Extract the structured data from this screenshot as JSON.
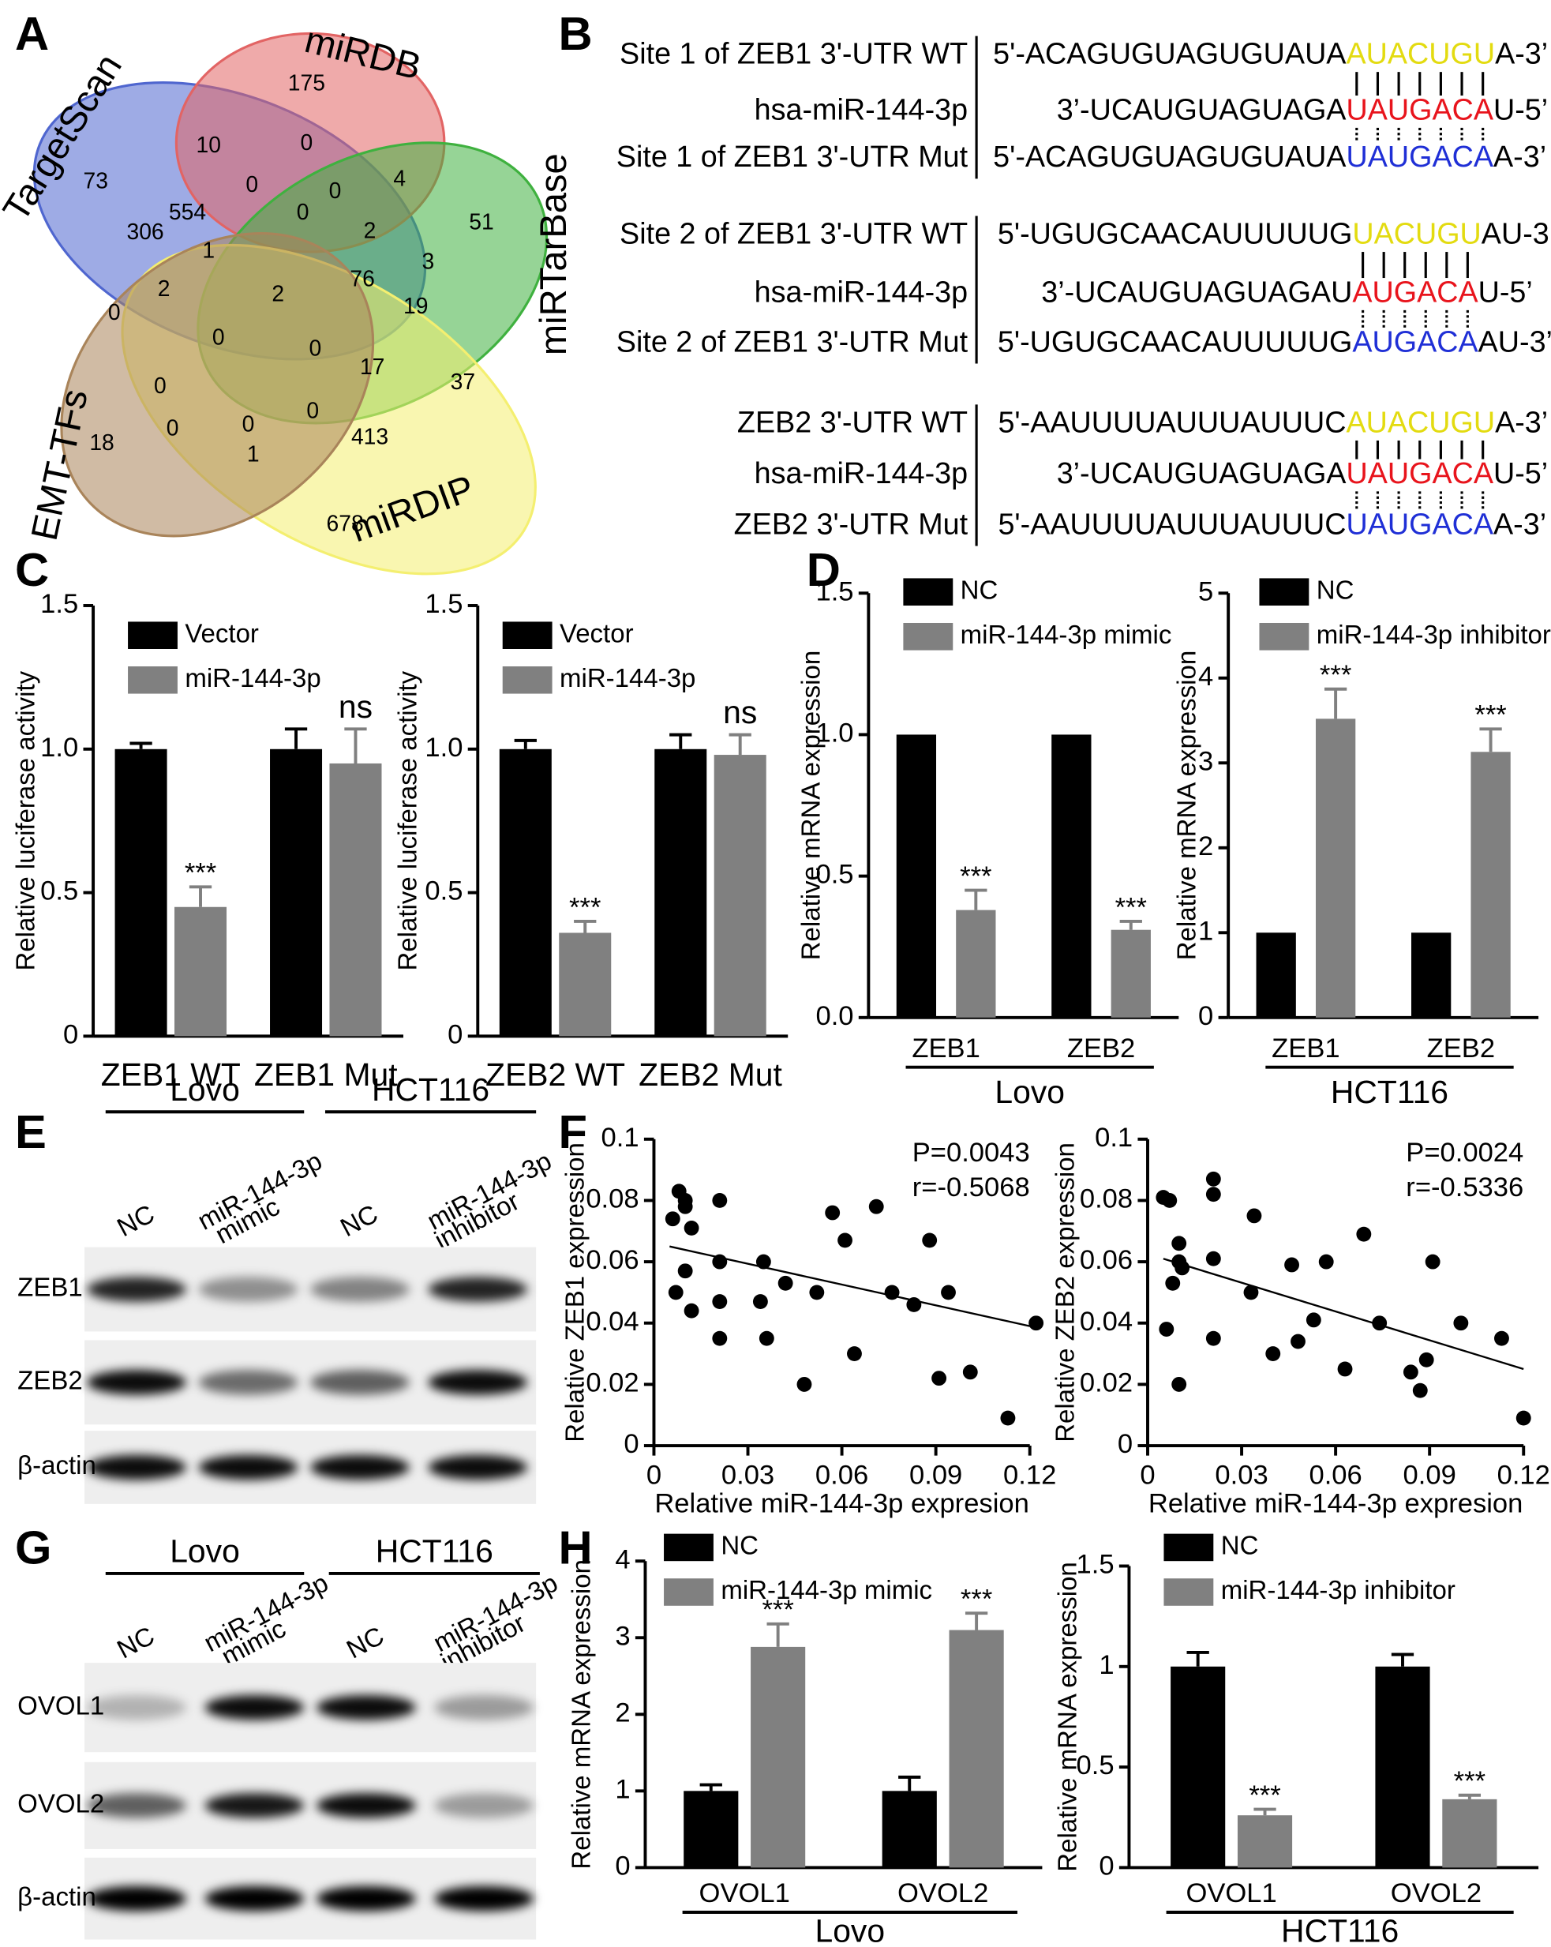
{
  "panel_labels": [
    "A",
    "B",
    "C",
    "D",
    "E",
    "F",
    "G",
    "H"
  ],
  "venn": {
    "sets": [
      {
        "name": "TargetScan",
        "color": "#4f66cf"
      },
      {
        "name": "miRDB",
        "color": "#e26464"
      },
      {
        "name": "miRTarBase",
        "color": "#3fb13f"
      },
      {
        "name": "miRDIP",
        "color": "#f4ef70"
      },
      {
        "name": "EMT-TFs",
        "color": "#a9845a"
      }
    ],
    "counts": [
      175,
      10,
      0,
      73,
      0,
      0,
      4,
      51,
      306,
      554,
      0,
      2,
      3,
      1,
      2,
      2,
      76,
      19,
      0,
      0,
      0,
      17,
      37,
      0,
      0,
      0,
      18,
      0,
      413,
      1,
      678
    ]
  },
  "sequences": [
    {
      "rows": [
        {
          "label": "Site 1 of ZEB1 3'-UTR WT",
          "segments": [
            "5'-ACAGUGUAGUGUAUA",
            "AUACUGU",
            "A-3’"
          ],
          "seed_color": "#e3db10"
        },
        {
          "label": "hsa-miR-144-3p",
          "segments": [
            "3’-UCAUGUAGUAGA",
            "UAUGACA",
            "U-5’"
          ],
          "seed_color": "#e8141c"
        },
        {
          "label": "Site 1 of ZEB1 3'-UTR Mut",
          "segments": [
            "5'-ACAGUGUAGUGUAUA",
            "UAUGACA",
            "A-3’"
          ],
          "seed_color": "#1f2fd6"
        }
      ]
    },
    {
      "rows": [
        {
          "label": "Site 2 of ZEB1 3'-UTR WT",
          "segments": [
            "5'-UGUGCAACAUUUUUG",
            "UACUGU",
            "AU-3’"
          ],
          "seed_color": "#e3db10"
        },
        {
          "label": "hsa-miR-144-3p",
          "segments": [
            "3’-UCAUGUAGUAGAU",
            "AUGACA",
            "U-5’"
          ],
          "seed_color": "#e8141c"
        },
        {
          "label": "Site 2 of ZEB1 3'-UTR Mut",
          "segments": [
            "5'-UGUGCAACAUUUUUG",
            "AUGACA",
            "AU-3’"
          ],
          "seed_color": "#1f2fd6"
        }
      ]
    },
    {
      "rows": [
        {
          "label": "ZEB2 3'-UTR WT",
          "segments": [
            "5'-AAUUUUAUUUAUUUC",
            "AUACUGU",
            "A-3’"
          ],
          "seed_color": "#e3db10"
        },
        {
          "label": "hsa-miR-144-3p",
          "segments": [
            "3’-UCAUGUAGUAGA",
            "UAUGACA",
            "U-5’"
          ],
          "seed_color": "#e8141c"
        },
        {
          "label": "ZEB2 3'-UTR Mut",
          "segments": [
            "5'-AAUUUUAUUUAUUUC",
            "UAUGACA",
            "A-3’"
          ],
          "seed_color": "#1f2fd6"
        }
      ]
    }
  ],
  "chart_data": [
    {
      "type": "bar",
      "ylabel": "Relative luciferase activity",
      "categories": [
        "ZEB1 WT",
        "ZEB1 Mut"
      ],
      "legend": "upper left",
      "ylim": [
        0,
        1.5
      ],
      "yticks": [
        0,
        0.5,
        {
          "value": 1,
          "label": "1.0"
        },
        1.5
      ],
      "series": [
        {
          "name": "Vector",
          "color": "#000000",
          "values": [
            1,
            1
          ],
          "errors": [
            0.02,
            0.07
          ]
        },
        {
          "name": "miR-144-3p",
          "color": "#808080",
          "values": [
            0.45,
            0.95
          ],
          "errors": [
            0.07,
            0.12
          ],
          "significance": [
            "***",
            "ns"
          ]
        }
      ]
    },
    {
      "type": "bar",
      "ylabel": "Relative luciferase activity",
      "categories": [
        "ZEB2 WT",
        "ZEB2 Mut"
      ],
      "legend": "upper left",
      "ylim": [
        0,
        1.5
      ],
      "yticks": [
        0,
        0.5,
        {
          "value": 1,
          "label": "1.0"
        },
        1.5
      ],
      "series": [
        {
          "name": "Vector",
          "color": "#000000",
          "values": [
            1,
            1
          ],
          "errors": [
            0.03,
            0.05
          ]
        },
        {
          "name": "miR-144-3p",
          "color": "#808080",
          "values": [
            0.36,
            0.98
          ],
          "errors": [
            0.04,
            0.07
          ],
          "significance": [
            "***",
            "ns"
          ]
        }
      ]
    },
    {
      "type": "bar",
      "ylabel": "Relative mRNA expression",
      "categories": [
        "ZEB1",
        "ZEB2"
      ],
      "group": "Lovo",
      "legend": "upper left",
      "ylim": [
        0,
        1.5
      ],
      "yticks": [
        {
          "value": 0,
          "label": "0.0"
        },
        0.5,
        {
          "value": 1,
          "label": "1.0"
        },
        1.5
      ],
      "series": [
        {
          "name": "NC",
          "color": "#000000",
          "values": [
            1,
            1
          ]
        },
        {
          "name": "miR-144-3p mimic",
          "color": "#808080",
          "values": [
            0.38,
            0.31
          ],
          "errors": [
            0.07,
            0.03
          ],
          "significance": [
            "***",
            "***"
          ]
        }
      ]
    },
    {
      "type": "bar",
      "ylabel": "Relative mRNA expression",
      "categories": [
        "ZEB1",
        "ZEB2"
      ],
      "group": "HCT116",
      "legend": "upper left",
      "ylim": [
        0,
        5
      ],
      "yticks": [
        0,
        1,
        2,
        3,
        4,
        5
      ],
      "series": [
        {
          "name": "NC",
          "color": "#000000",
          "values": [
            1,
            1
          ]
        },
        {
          "name": "miR-144-3p inhibitor",
          "color": "#808080",
          "values": [
            3.52,
            3.13
          ],
          "errors": [
            0.35,
            0.27
          ],
          "significance": [
            "***",
            "***"
          ]
        }
      ]
    },
    {
      "type": "scatter",
      "ylabel": "Relative ZEB1 expression",
      "xlabel": "Relative miR-144-3p expresion",
      "annotations": [
        "P=0.0043",
        "r=-0.5068"
      ],
      "xlim": [
        0,
        0.12
      ],
      "xticks": [
        0,
        0.03,
        0.06,
        0.09,
        0.12
      ],
      "ylim": [
        0,
        0.1
      ],
      "yticks": [
        0,
        0.02,
        0.04,
        0.06,
        0.08,
        0.1
      ],
      "x": [
        0.006,
        0.008,
        0.01,
        0.01,
        0.012,
        0.007,
        0.012,
        0.01,
        0.021,
        0.021,
        0.021,
        0.021,
        0.034,
        0.035,
        0.036,
        0.042,
        0.048,
        0.052,
        0.057,
        0.061,
        0.064,
        0.071,
        0.076,
        0.083,
        0.088,
        0.091,
        0.094,
        0.101,
        0.113,
        0.122
      ],
      "y": [
        0.074,
        0.083,
        0.078,
        0.08,
        0.071,
        0.05,
        0.044,
        0.057,
        0.08,
        0.06,
        0.047,
        0.035,
        0.047,
        0.06,
        0.035,
        0.053,
        0.02,
        0.05,
        0.076,
        0.067,
        0.03,
        0.078,
        0.05,
        0.046,
        0.067,
        0.022,
        0.05,
        0.024,
        0.009,
        0.04
      ],
      "trendline": {
        "x": [
          0.005,
          0.12
        ],
        "y": [
          0.065,
          0.039
        ]
      }
    },
    {
      "type": "scatter",
      "ylabel": "Relative ZEB2 expression",
      "xlabel": "Relative miR-144-3p expresion",
      "annotations": [
        "P=0.0024",
        "r=-0.5336"
      ],
      "xlim": [
        0,
        0.12
      ],
      "xticks": [
        0,
        0.03,
        0.06,
        0.09,
        0.12
      ],
      "ylim": [
        0,
        0.1
      ],
      "yticks": [
        0,
        0.02,
        0.04,
        0.06,
        0.08,
        0.1
      ],
      "x": [
        0.005,
        0.007,
        0.01,
        0.01,
        0.011,
        0.006,
        0.008,
        0.01,
        0.021,
        0.021,
        0.021,
        0.021,
        0.033,
        0.034,
        0.04,
        0.046,
        0.048,
        0.053,
        0.057,
        0.063,
        0.069,
        0.074,
        0.084,
        0.087,
        0.089,
        0.091,
        0.1,
        0.113,
        0.12
      ],
      "y": [
        0.081,
        0.08,
        0.066,
        0.06,
        0.058,
        0.038,
        0.053,
        0.02,
        0.087,
        0.082,
        0.061,
        0.035,
        0.05,
        0.075,
        0.03,
        0.059,
        0.034,
        0.041,
        0.06,
        0.025,
        0.069,
        0.04,
        0.024,
        0.018,
        0.028,
        0.06,
        0.04,
        0.035,
        0.009
      ],
      "trendline": {
        "x": [
          0.005,
          0.12
        ],
        "y": [
          0.061,
          0.025
        ]
      }
    },
    {
      "type": "bar",
      "ylabel": "Relative mRNA expression",
      "categories": [
        "OVOL1",
        "OVOL2"
      ],
      "group": "Lovo",
      "legend": "upper left",
      "ylim": [
        0,
        4
      ],
      "yticks": [
        0,
        1,
        2,
        3,
        4
      ],
      "series": [
        {
          "name": "NC",
          "color": "#000000",
          "values": [
            1,
            1
          ],
          "errors": [
            0.08,
            0.18
          ]
        },
        {
          "name": "miR-144-3p mimic",
          "color": "#808080",
          "values": [
            2.88,
            3.1
          ],
          "errors": [
            0.3,
            0.22
          ],
          "significance": [
            "***",
            "***"
          ]
        }
      ]
    },
    {
      "type": "bar",
      "ylabel": "Relative mRNA expression",
      "categories": [
        "OVOL1",
        "OVOL2"
      ],
      "group": "HCT116",
      "legend": "upper left",
      "ylim": [
        0,
        1.5
      ],
      "yticks": [
        0,
        0.5,
        1,
        1.5
      ],
      "series": [
        {
          "name": "NC",
          "color": "#000000",
          "values": [
            1,
            1
          ],
          "errors": [
            0.07,
            0.06
          ]
        },
        {
          "name": "miR-144-3p inhibitor",
          "color": "#808080",
          "values": [
            0.26,
            0.34
          ],
          "errors": [
            0.03,
            0.02
          ],
          "significance": [
            "***",
            "***"
          ]
        }
      ]
    }
  ],
  "blots": [
    {
      "groups": [
        "Lovo",
        "HCT116"
      ],
      "lanes": [
        [
          "NC"
        ],
        [
          "miR-144-3p",
          "mimic"
        ],
        [
          "NC"
        ],
        [
          "miR-144-3p",
          "inhibitor"
        ]
      ],
      "rows": [
        "ZEB1",
        "ZEB2",
        "β-actin"
      ]
    },
    {
      "groups": [
        "Lovo",
        "HCT116"
      ],
      "lanes": [
        [
          "NC"
        ],
        [
          "miR-144-3p",
          "mimic"
        ],
        [
          "NC"
        ],
        [
          "miR-144-3p",
          "inhibitor"
        ]
      ],
      "rows": [
        "OVOL1",
        "OVOL2",
        "β-actin"
      ]
    }
  ]
}
